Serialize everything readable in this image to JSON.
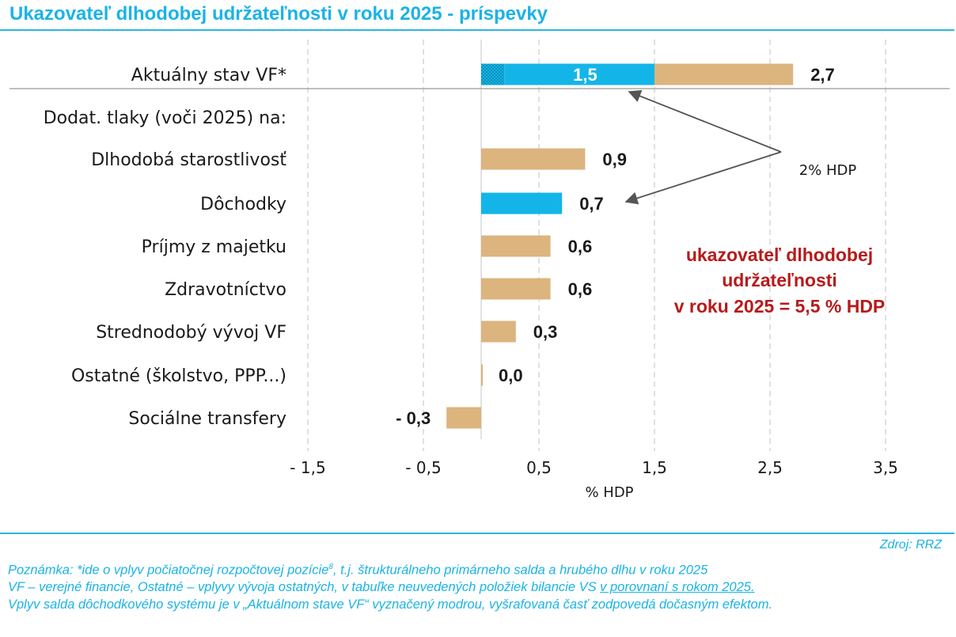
{
  "header": {
    "title": "Ukazovateľ dlhodobej udržateľnosti v roku 2025 - príspevky"
  },
  "chart_data": {
    "type": "bar",
    "orientation": "horizontal",
    "title": "Ukazovateľ dlhodobej udržateľnosti v roku 2025 - príspevky",
    "xlabel": "% HDP",
    "xlim": [
      -1.5,
      3.5
    ],
    "xticks": [
      -1.5,
      -0.5,
      0.5,
      1.5,
      2.5,
      3.5
    ],
    "xtick_labels": [
      "- 1,5",
      "- 0,5",
      "0,5",
      "1,5",
      "2,5",
      "3,5"
    ],
    "grid": "vertical dashed",
    "group_header": "Dodat. tlaky (voči 2025) na:",
    "categories": [
      "Aktuálny stav VF*",
      "Dlhodobá starostlivosť",
      "Dôchodky",
      "Príjmy z majetku",
      "Zdravotníctvo ",
      "Strednodobý vývoj VF",
      "Ostatné (školstvo, PPP...)",
      "Sociálne transfery"
    ],
    "values": [
      2.7,
      0.9,
      0.7,
      0.6,
      0.6,
      0.3,
      0.0,
      -0.3
    ],
    "value_labels": [
      "2,7",
      "0,9",
      "0,7",
      "0,6",
      "0,6",
      "0,3",
      "0,0",
      "- 0,3"
    ],
    "bar_colors": [
      "#dcb47e",
      "#dcb47e",
      "#13b5e8",
      "#dcb47e",
      "#dcb47e",
      "#dcb47e",
      "#dcb47e",
      "#dcb47e"
    ],
    "current_state_split": {
      "pension_part": 1.5,
      "pension_part_label": "1,5",
      "hatched_part": 0.2,
      "other_part": 1.2
    },
    "annotations": [
      {
        "text": "2% HDP",
        "arrows_to": [
          "Aktuálny stav VF*",
          "Dôchodky"
        ]
      },
      {
        "lines": [
          "ukazovateľ dlhodobej",
          "udržateľnosti",
          "v roku 2025 = 5,5 % HDP"
        ],
        "color": "#b81a1a"
      }
    ],
    "colors": {
      "pension": "#13b5e8",
      "other": "#dcb47e",
      "hatch": "#0b8fb8",
      "annotation": "#b81a1a"
    }
  },
  "footer": {
    "source": "Zdroj: RRZ",
    "note1_a": "Poznámka: *ide o vplyv počiatočnej rozpočtovej pozície",
    "note1_sup": "8",
    "note1_b": ", t.j. štrukturálneho primárneho salda a hrubého dlhu v roku 2025",
    "note2_a": "VF – verejné financie, Ostatné – vplyvy vývoja ostatných, v tabuľke neuvedených položiek bilancie VS ",
    "note2_u": "v porovnaní s rokom 2025.",
    "note3": "Vplyv salda dôchodkového systému je v „Aktuálnom stave VF“ vyznačený modrou, vyšrafovaná časť zodpovedá dočasným efektom."
  }
}
